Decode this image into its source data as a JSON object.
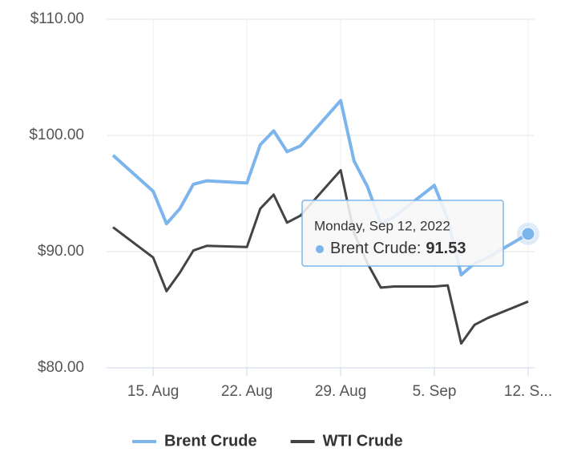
{
  "chart_data": {
    "type": "line",
    "x": [
      "2022-08-12",
      "2022-08-15",
      "2022-08-16",
      "2022-08-17",
      "2022-08-18",
      "2022-08-19",
      "2022-08-22",
      "2022-08-23",
      "2022-08-24",
      "2022-08-25",
      "2022-08-26",
      "2022-08-29",
      "2022-08-30",
      "2022-08-31",
      "2022-09-01",
      "2022-09-02",
      "2022-09-05",
      "2022-09-06",
      "2022-09-07",
      "2022-09-08",
      "2022-09-09",
      "2022-09-12"
    ],
    "series": [
      {
        "name": "Brent Crude",
        "color": "#7cb5ec",
        "values": [
          98.3,
          95.2,
          92.4,
          93.7,
          95.8,
          96.1,
          95.9,
          99.2,
          100.4,
          98.6,
          99.1,
          103.0,
          97.8,
          95.6,
          92.4,
          93.0,
          95.7,
          92.8,
          88.0,
          89.0,
          89.5,
          91.53
        ]
      },
      {
        "name": "WTI Crude",
        "color": "#434348",
        "values": [
          92.1,
          89.5,
          86.6,
          88.2,
          90.1,
          90.5,
          90.4,
          93.7,
          94.9,
          92.5,
          93.1,
          97.0,
          91.6,
          89.0,
          86.9,
          87.0,
          87.0,
          87.1,
          82.1,
          83.7,
          84.3,
          85.7
        ]
      }
    ],
    "xlim": [
      "2022-08-12",
      "2022-09-12"
    ],
    "xticks": [
      {
        "value": "2022-08-15",
        "label": "15. Aug"
      },
      {
        "value": "2022-08-22",
        "label": "22. Aug"
      },
      {
        "value": "2022-08-29",
        "label": "29. Aug"
      },
      {
        "value": "2022-09-05",
        "label": "5. Sep"
      },
      {
        "value": "2022-09-12",
        "label": "12. S..."
      }
    ],
    "ylim": [
      80,
      110
    ],
    "yticks": [
      {
        "value": 80,
        "label": "$80.00"
      },
      {
        "value": 90,
        "label": "$90.00"
      },
      {
        "value": 100,
        "label": "$100.00"
      },
      {
        "value": 110,
        "label": "$110.00"
      }
    ],
    "grid": true,
    "legend": "bottom",
    "tooltip": {
      "title": "Monday, Sep 12, 2022",
      "text": "Brent Crude:"
    }
  }
}
